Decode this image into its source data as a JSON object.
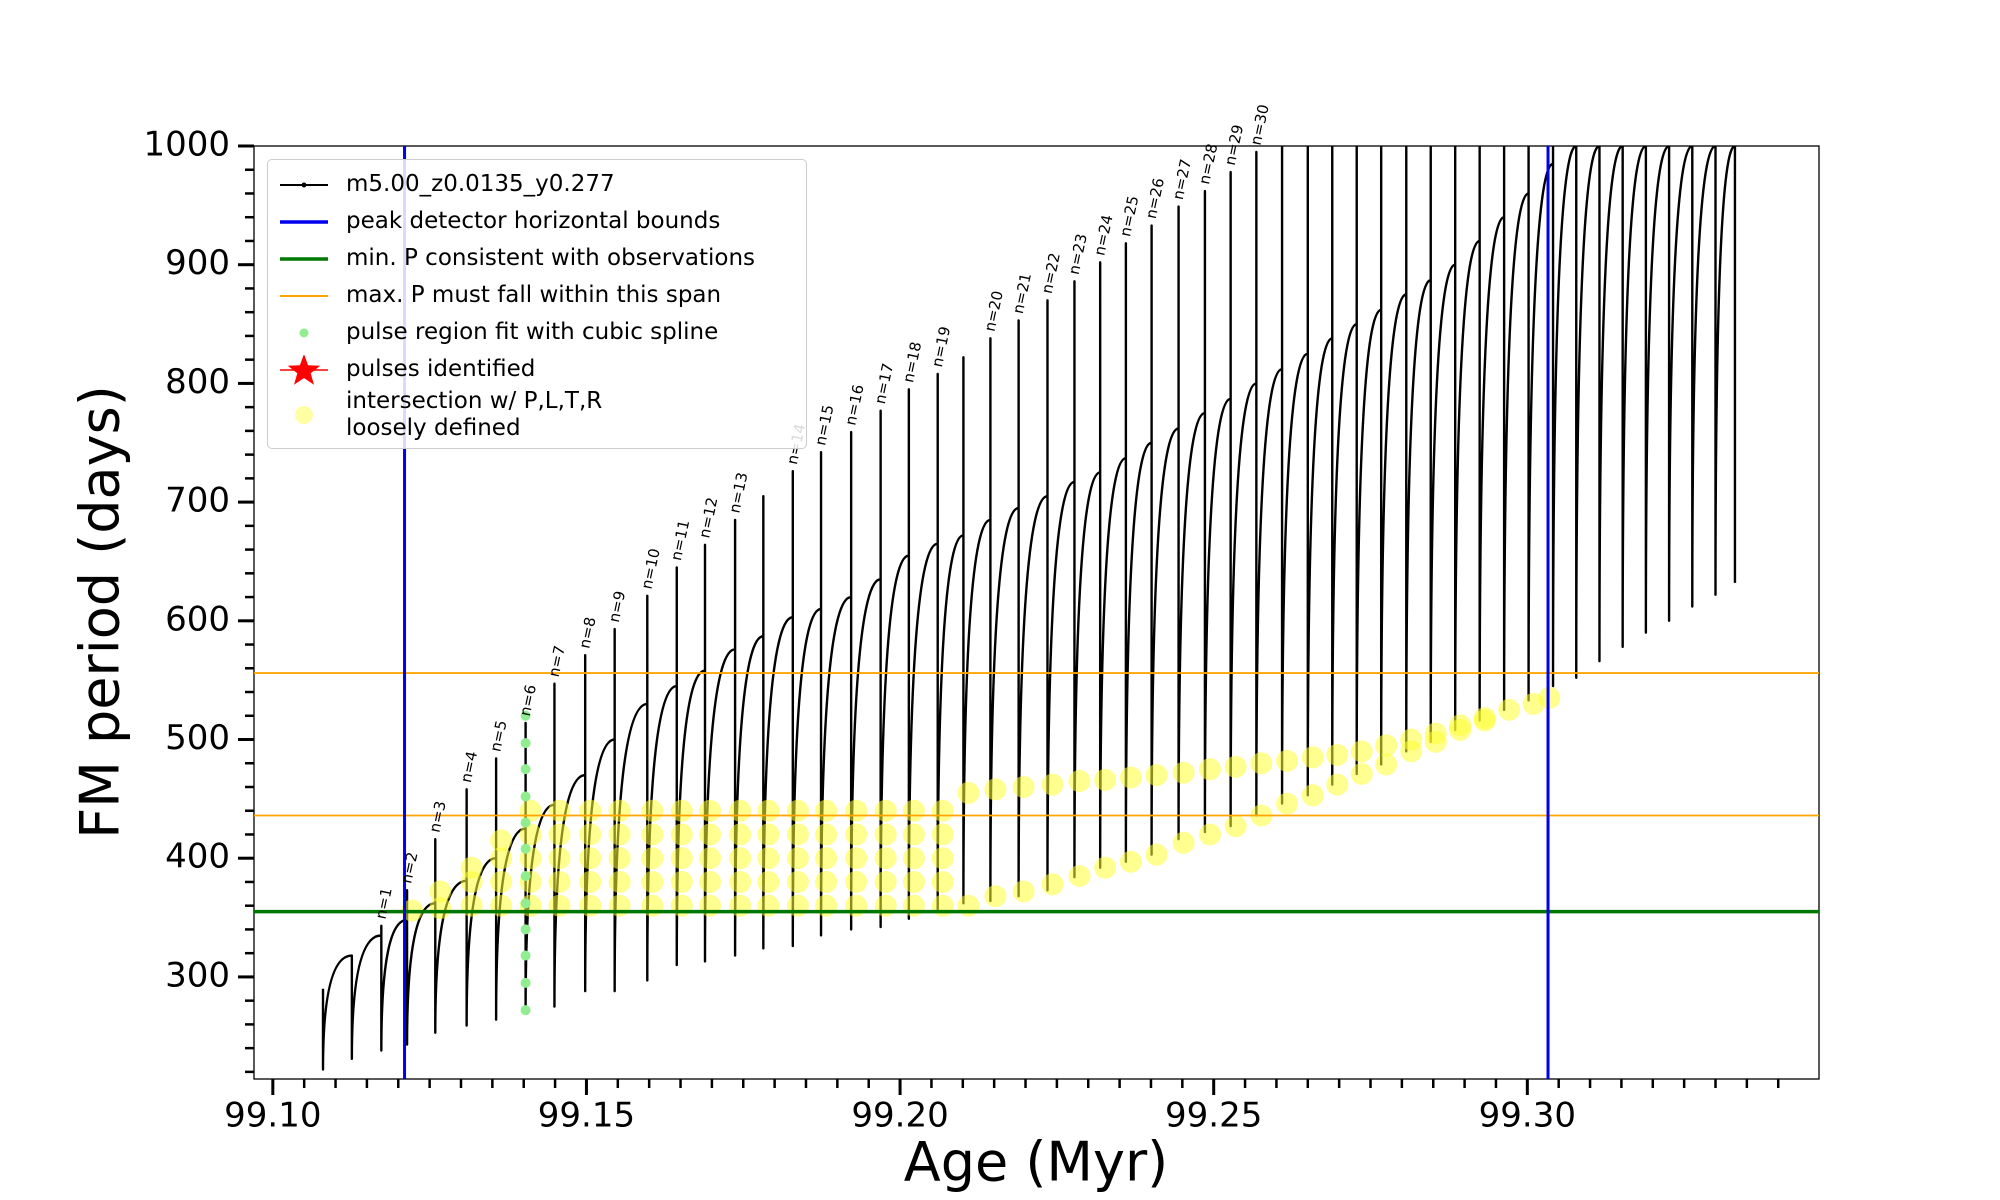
{
  "chart_data": {
    "type": "line",
    "xlabel": "Age (Myr)",
    "ylabel": "FM period (days)",
    "xlim": [
      99.097,
      99.3465
    ],
    "ylim": [
      214,
      1000
    ],
    "xticks": [
      {
        "value": 99.1,
        "label": "99.10"
      },
      99.15,
      {
        "value": 99.2,
        "label": "99.20"
      },
      99.25,
      {
        "value": 99.3,
        "label": "99.30"
      }
    ],
    "xminorticks": [
      99.1,
      99.105,
      99.11,
      99.115,
      99.12,
      99.125,
      99.13,
      99.135,
      99.14,
      99.145,
      99.15,
      99.155,
      99.16,
      99.165,
      99.17,
      99.175,
      99.18,
      99.185,
      99.19,
      99.195,
      99.2,
      99.205,
      99.21,
      99.215,
      99.22,
      99.225,
      99.23,
      99.235,
      99.24,
      99.245,
      99.25,
      99.255,
      99.26,
      99.265,
      99.27,
      99.275,
      99.28,
      99.285,
      99.29,
      99.295,
      99.3,
      99.305,
      99.31,
      99.315,
      99.32,
      99.325,
      99.33,
      99.335,
      99.34
    ],
    "yticks": [
      300,
      400,
      500,
      600,
      700,
      800,
      900,
      1000
    ],
    "yminorticks": [
      220,
      240,
      260,
      280,
      300,
      320,
      340,
      360,
      380,
      400,
      420,
      440,
      460,
      480,
      500,
      520,
      540,
      560,
      580,
      600,
      620,
      640,
      660,
      680,
      700,
      720,
      740,
      760,
      780,
      800,
      820,
      840,
      860,
      880,
      900,
      920,
      940,
      960,
      980,
      1000
    ],
    "grid": false,
    "legend": "upper left",
    "series": [
      {
        "name": "m5.00_z0.0135_y0.277",
        "kind": "line",
        "color": "#000000",
        "x": [
          99.108,
          99.108,
          99.1126,
          99.1126,
          99.1126,
          99.1173,
          99.1173,
          99.1173,
          99.1214,
          99.1214,
          99.1214,
          99.1259,
          99.1259,
          99.1259,
          99.1309,
          99.1309,
          99.1309,
          99.1356,
          99.1356,
          99.1356,
          99.1403,
          99.1403,
          99.1403,
          99.1449,
          99.1449,
          99.1449,
          99.1498,
          99.1498,
          99.1498,
          99.1545,
          99.1545,
          99.1545,
          99.1597,
          99.1597,
          99.1597,
          99.1644,
          99.1644,
          99.1644,
          99.1689,
          99.1689,
          99.1689,
          99.1737,
          99.1737,
          99.1737,
          99.1782,
          99.1782,
          99.1782,
          99.1829,
          99.1829,
          99.1829,
          99.1874,
          99.1874,
          99.1874,
          99.1922,
          99.1922,
          99.1922,
          99.1969,
          99.1969,
          99.1969,
          99.2014,
          99.2014,
          99.2014,
          99.206,
          99.206,
          99.206,
          99.2101,
          99.2101,
          99.2101,
          99.2144,
          99.2144,
          99.2144,
          99.2189,
          99.2189,
          99.2189,
          99.2235,
          99.2235,
          99.2235,
          99.2278,
          99.2278,
          99.2278,
          99.2319,
          99.2319,
          99.2319,
          99.236,
          99.236,
          99.236,
          99.2401,
          99.2401,
          99.2401,
          99.2444,
          99.2444,
          99.2444,
          99.2486,
          99.2486,
          99.2486,
          99.2527,
          99.2527,
          99.2527,
          99.2568,
          99.2568,
          99.2568,
          99.2609,
          99.2609,
          99.2609,
          99.265,
          99.265,
          99.265,
          99.2689,
          99.2689,
          99.2689,
          99.2728,
          99.2728,
          99.2728,
          99.2767,
          99.2767,
          99.2767,
          99.2807,
          99.2807,
          99.2807,
          99.2846,
          99.2846,
          99.2846,
          99.2885,
          99.2885,
          99.2885,
          99.2924,
          99.2924,
          99.2924,
          99.2963,
          99.2963,
          99.2963,
          99.3002,
          99.3002,
          99.3002,
          99.3041,
          99.3041,
          99.3041,
          99.3078,
          99.3078,
          99.3078,
          99.3115,
          99.3115,
          99.3115,
          99.3152,
          99.3152,
          99.3152,
          99.3189,
          99.3189,
          99.3189,
          99.3226,
          99.3226,
          99.3226,
          99.3263,
          99.3263,
          99.3263,
          99.33,
          99.33,
          99.33,
          99.3331,
          99.3331,
          99.3331
        ],
        "values": [
          290,
          222,
          318,
          318,
          231,
          335,
          343,
          238,
          348,
          373,
          243,
          362,
          416,
          253,
          381,
          458,
          259,
          400,
          484,
          264,
          425,
          514,
          270,
          445,
          547,
          275,
          470,
          571,
          288,
          500,
          593,
          288,
          530,
          621,
          297,
          545,
          645,
          310,
          558,
          664,
          313,
          576,
          685,
          318,
          587,
          705,
          324,
          603,
          726,
          326,
          610,
          742,
          335,
          620,
          759,
          340,
          635,
          777,
          342,
          655,
          795,
          349,
          665,
          808,
          357,
          672,
          822,
          362,
          685,
          838,
          364,
          695,
          853,
          368,
          705,
          870,
          373,
          717,
          886,
          384,
          725,
          902,
          392,
          737,
          918,
          397,
          750,
          933,
          403,
          762,
          949,
          416,
          775,
          962,
          422,
          787,
          978,
          427,
          800,
          995,
          436,
          812,
          1000,
          446,
          825,
          1000,
          453,
          838,
          1000,
          462,
          850,
          1000,
          471,
          862,
          1000,
          479,
          875,
          1000,
          490,
          887,
          1000,
          498,
          900,
          1000,
          508,
          920,
          1000,
          516,
          940,
          1000,
          525,
          960,
          1000,
          533,
          985,
          1000,
          545,
          1000,
          1000,
          552,
          1000,
          1000,
          566,
          1000,
          1000,
          578,
          1000,
          1000,
          590,
          1000,
          1000,
          600,
          1000,
          1000,
          612,
          1000,
          1000,
          622,
          1000,
          1000,
          632
        ]
      },
      {
        "name": "peak detector horizontal bounds",
        "kind": "vline",
        "color": "#0000ee",
        "x": [
          99.121,
          99.3033
        ]
      },
      {
        "name": "min. P consistent with observations",
        "kind": "hline",
        "color": "#007800",
        "values": [
          355
        ]
      },
      {
        "name": "max. P must fall within this span",
        "kind": "hline",
        "color": "#ffa500",
        "values": [
          436,
          556
        ]
      },
      {
        "name": "pulse region fit with cubic spline",
        "kind": "scatter",
        "color": "#90ee90",
        "x": [
          99.1403,
          99.1403,
          99.1403,
          99.1403,
          99.1403,
          99.1403,
          99.1403,
          99.1403,
          99.1403,
          99.1403,
          99.1403,
          99.1403
        ],
        "values": [
          272,
          295,
          318,
          340,
          362,
          385,
          408,
          430,
          452,
          475,
          497,
          520
        ]
      },
      {
        "name": "pulses identified",
        "kind": "star",
        "color": "#ff0000",
        "x": [],
        "values": []
      },
      {
        "name": "intersection w/ P,L,T,R\nloosely defined",
        "kind": "bigscatter",
        "color": "#ffff33",
        "x": [
          99.1222,
          99.1267,
          99.1267,
          99.1317,
          99.1317,
          99.1317,
          99.1364,
          99.1364,
          99.1364,
          99.1364,
          99.1411,
          99.1411,
          99.1411,
          99.1411,
          99.1411,
          99.1457,
          99.1457,
          99.1457,
          99.1457,
          99.1457,
          99.1506,
          99.1506,
          99.1506,
          99.1506,
          99.1506,
          99.1553,
          99.1553,
          99.1553,
          99.1553,
          99.1553,
          99.1605,
          99.1605,
          99.1605,
          99.1605,
          99.1605,
          99.1652,
          99.1652,
          99.1652,
          99.1652,
          99.1652,
          99.1697,
          99.1697,
          99.1697,
          99.1697,
          99.1697,
          99.1745,
          99.1745,
          99.1745,
          99.1745,
          99.1745,
          99.179,
          99.179,
          99.179,
          99.179,
          99.179,
          99.1837,
          99.1837,
          99.1837,
          99.1837,
          99.1837,
          99.1882,
          99.1882,
          99.1882,
          99.1882,
          99.1882,
          99.193,
          99.193,
          99.193,
          99.193,
          99.193,
          99.1977,
          99.1977,
          99.1977,
          99.1977,
          99.1977,
          99.2022,
          99.2022,
          99.2022,
          99.2022,
          99.2022,
          99.2068,
          99.2068,
          99.2068,
          99.2068,
          99.2068,
          99.2109,
          99.2109,
          99.2152,
          99.2152,
          99.2197,
          99.2197,
          99.2243,
          99.2243,
          99.2286,
          99.2286,
          99.2327,
          99.2327,
          99.2368,
          99.2368,
          99.2409,
          99.2409,
          99.2452,
          99.2452,
          99.2494,
          99.2494,
          99.2535,
          99.2535,
          99.2576,
          99.2576,
          99.2617,
          99.2617,
          99.2658,
          99.2658,
          99.2697,
          99.2697,
          99.2736,
          99.2736,
          99.2775,
          99.2775,
          99.2815,
          99.2815,
          99.2854,
          99.2854,
          99.2893,
          99.2893,
          99.2932,
          99.2932,
          99.2971,
          99.301,
          99.3035
        ],
        "values": [
          356,
          358,
          372,
          360,
          380,
          392,
          360,
          380,
          400,
          415,
          360,
          380,
          400,
          420,
          440,
          360,
          380,
          400,
          420,
          440,
          360,
          380,
          400,
          420,
          440,
          360,
          380,
          400,
          420,
          440,
          360,
          380,
          400,
          420,
          440,
          360,
          380,
          400,
          420,
          440,
          360,
          380,
          400,
          420,
          440,
          360,
          380,
          400,
          420,
          440,
          360,
          380,
          400,
          420,
          440,
          360,
          380,
          400,
          420,
          440,
          360,
          380,
          400,
          420,
          440,
          360,
          380,
          400,
          420,
          440,
          360,
          380,
          400,
          420,
          440,
          360,
          380,
          400,
          420,
          440,
          360,
          380,
          400,
          420,
          440,
          360,
          455,
          368,
          458,
          372,
          460,
          378,
          462,
          385,
          465,
          392,
          466,
          397,
          468,
          403,
          470,
          413,
          472,
          420,
          475,
          427,
          477,
          436,
          480,
          446,
          482,
          453,
          485,
          462,
          487,
          471,
          490,
          479,
          495,
          490,
          500,
          498,
          505,
          508,
          512,
          516,
          518,
          525,
          530,
          535
        ]
      }
    ],
    "annotations": [
      {
        "text": "n=1",
        "x": 99.1173,
        "y": 343
      },
      {
        "text": "n=2",
        "x": 99.1214,
        "y": 373
      },
      {
        "text": "n=3",
        "x": 99.1259,
        "y": 416
      },
      {
        "text": "n=4",
        "x": 99.1309,
        "y": 458
      },
      {
        "text": "n=5",
        "x": 99.1356,
        "y": 484
      },
      {
        "text": "n=6",
        "x": 99.1403,
        "y": 514
      },
      {
        "text": "n=7",
        "x": 99.1449,
        "y": 547
      },
      {
        "text": "n=8",
        "x": 99.1498,
        "y": 571
      },
      {
        "text": "n=9",
        "x": 99.1545,
        "y": 593
      },
      {
        "text": "n=10",
        "x": 99.1597,
        "y": 621
      },
      {
        "text": "n=11",
        "x": 99.1644,
        "y": 645
      },
      {
        "text": "n=12",
        "x": 99.1689,
        "y": 664
      },
      {
        "text": "n=13",
        "x": 99.1737,
        "y": 685
      },
      {
        "text": "n=14",
        "x": 99.1829,
        "y": 726
      },
      {
        "text": "n=15",
        "x": 99.1874,
        "y": 742
      },
      {
        "text": "n=16",
        "x": 99.1922,
        "y": 759
      },
      {
        "text": "n=17",
        "x": 99.1969,
        "y": 777
      },
      {
        "text": "n=18",
        "x": 99.2014,
        "y": 795
      },
      {
        "text": "n=19",
        "x": 99.206,
        "y": 808
      },
      {
        "text": "n=20",
        "x": 99.2144,
        "y": 838
      },
      {
        "text": "n=21",
        "x": 99.2189,
        "y": 853
      },
      {
        "text": "n=22",
        "x": 99.2235,
        "y": 870
      },
      {
        "text": "n=23",
        "x": 99.2278,
        "y": 886
      },
      {
        "text": "n=24",
        "x": 99.2319,
        "y": 902
      },
      {
        "text": "n=25",
        "x": 99.236,
        "y": 918
      },
      {
        "text": "n=26",
        "x": 99.2401,
        "y": 933
      },
      {
        "text": "n=27",
        "x": 99.2444,
        "y": 949
      },
      {
        "text": "n=28",
        "x": 99.2486,
        "y": 962
      },
      {
        "text": "n=29",
        "x": 99.2527,
        "y": 978
      },
      {
        "text": "n=30",
        "x": 99.2568,
        "y": 995
      }
    ]
  }
}
